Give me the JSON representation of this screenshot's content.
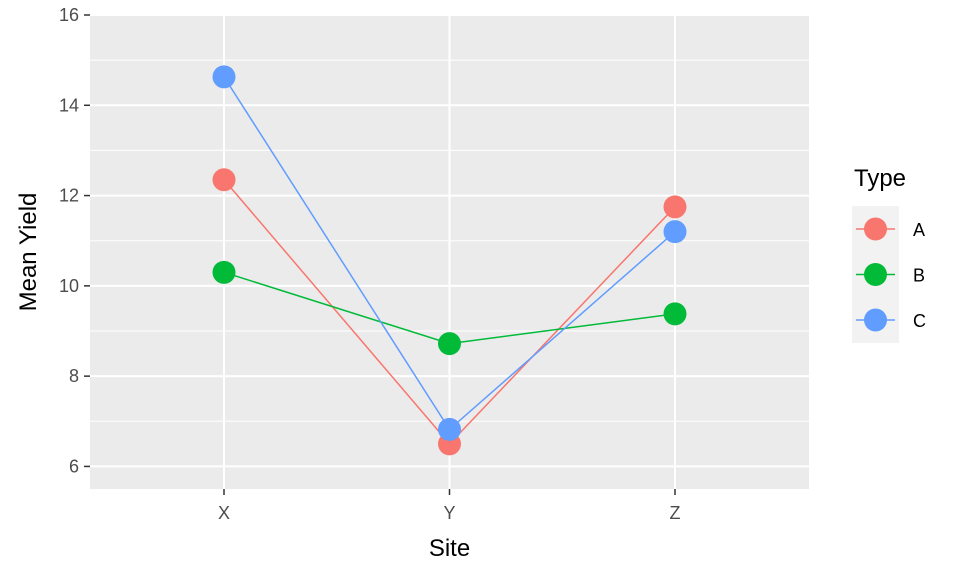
{
  "chart_data": {
    "type": "line",
    "xlabel": "Site",
    "ylabel": "Mean Yield",
    "categories": [
      "X",
      "Y",
      "Z"
    ],
    "ylim": [
      5.5,
      16
    ],
    "yticks": [
      6,
      8,
      10,
      12,
      14,
      16
    ],
    "grid": true,
    "legend": {
      "title": "Type",
      "position": "right"
    },
    "series": [
      {
        "name": "A",
        "color": "#F8766D",
        "values": [
          12.35,
          6.5,
          11.75
        ]
      },
      {
        "name": "B",
        "color": "#00BA38",
        "values": [
          10.3,
          8.72,
          9.38
        ]
      },
      {
        "name": "C",
        "color": "#619CFF",
        "values": [
          14.63,
          6.82,
          11.2
        ]
      }
    ]
  }
}
